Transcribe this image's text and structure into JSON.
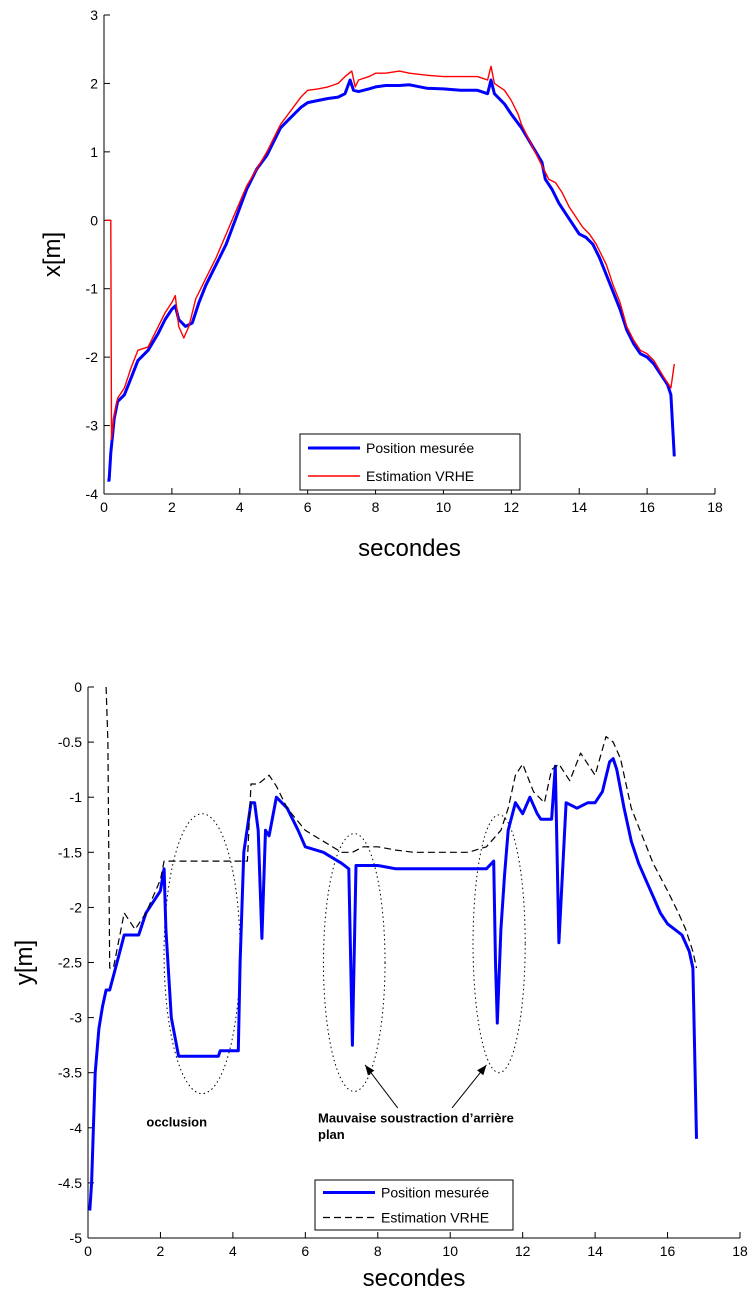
{
  "chart_data": [
    {
      "type": "line",
      "xlabel": "secondes",
      "ylabel": "x[m]",
      "xlim": [
        0,
        18
      ],
      "ylim": [
        -4,
        3
      ],
      "xticks": [
        "0",
        "2",
        "4",
        "6",
        "8",
        "10",
        "12",
        "14",
        "16",
        "18"
      ],
      "yticks": [
        "-4",
        "-3",
        "-2",
        "-1",
        "0",
        "1",
        "2",
        "3"
      ],
      "legend_position": "bottom-center",
      "series": [
        {
          "name": "Position mesurée",
          "color": "#0000ff",
          "style": "solid-thick",
          "x": [
            0.1,
            0.15,
            0.2,
            0.3,
            0.4,
            0.6,
            0.8,
            1.0,
            1.3,
            1.6,
            1.8,
            2.0,
            2.1,
            2.2,
            2.4,
            2.6,
            2.8,
            3.0,
            3.3,
            3.6,
            3.9,
            4.2,
            4.5,
            4.8,
            5.0,
            5.2,
            5.5,
            5.8,
            6.0,
            6.3,
            6.6,
            6.9,
            7.1,
            7.25,
            7.35,
            7.5,
            7.8,
            8.0,
            8.3,
            8.7,
            9.0,
            9.5,
            10.0,
            10.5,
            11.0,
            11.3,
            11.4,
            11.5,
            11.8,
            12.0,
            12.3,
            12.6,
            12.9,
            13.0,
            13.2,
            13.4,
            13.6,
            13.8,
            14.0,
            14.2,
            14.4,
            14.6,
            14.8,
            15.0,
            15.2,
            15.4,
            15.6,
            15.8,
            16.0,
            16.2,
            16.4,
            16.6,
            16.7,
            16.8
          ],
          "y": [
            -3.8,
            -3.8,
            -3.4,
            -2.9,
            -2.65,
            -2.55,
            -2.3,
            -2.05,
            -1.9,
            -1.65,
            -1.45,
            -1.3,
            -1.25,
            -1.45,
            -1.55,
            -1.5,
            -1.2,
            -0.95,
            -0.65,
            -0.35,
            0.05,
            0.45,
            0.75,
            0.95,
            1.15,
            1.35,
            1.5,
            1.65,
            1.72,
            1.75,
            1.78,
            1.8,
            1.85,
            2.05,
            1.9,
            1.88,
            1.92,
            1.95,
            1.97,
            1.97,
            1.98,
            1.93,
            1.92,
            1.9,
            1.9,
            1.85,
            2.05,
            1.85,
            1.7,
            1.55,
            1.35,
            1.1,
            0.85,
            0.6,
            0.45,
            0.25,
            0.1,
            -0.05,
            -0.2,
            -0.25,
            -0.35,
            -0.55,
            -0.8,
            -1.05,
            -1.3,
            -1.6,
            -1.8,
            -1.95,
            -2.0,
            -2.1,
            -2.25,
            -2.4,
            -2.55,
            -3.45
          ]
        },
        {
          "name": "Estimation VRHE",
          "color": "#ff0000",
          "style": "solid-thin",
          "x": [
            0.05,
            0.2,
            0.22,
            0.3,
            0.4,
            0.6,
            0.8,
            1.0,
            1.3,
            1.6,
            1.8,
            2.0,
            2.1,
            2.2,
            2.35,
            2.5,
            2.7,
            3.0,
            3.3,
            3.6,
            3.9,
            4.2,
            4.5,
            4.8,
            5.0,
            5.2,
            5.5,
            5.8,
            6.0,
            6.3,
            6.6,
            6.9,
            7.1,
            7.3,
            7.4,
            7.5,
            7.8,
            8.0,
            8.3,
            8.7,
            9.0,
            9.5,
            10.0,
            10.5,
            11.0,
            11.3,
            11.4,
            11.5,
            11.8,
            12.0,
            12.2,
            12.3,
            12.5,
            12.7,
            12.9,
            13.1,
            13.3,
            13.5,
            13.7,
            13.9,
            14.1,
            14.3,
            14.5,
            14.8,
            15.0,
            15.2,
            15.4,
            15.6,
            15.8,
            16.0,
            16.2,
            16.5,
            16.7,
            16.8
          ],
          "y": [
            0.0,
            0.0,
            -3.2,
            -2.85,
            -2.6,
            -2.45,
            -2.15,
            -1.9,
            -1.85,
            -1.55,
            -1.35,
            -1.2,
            -1.1,
            -1.55,
            -1.72,
            -1.55,
            -1.15,
            -0.85,
            -0.55,
            -0.2,
            0.15,
            0.5,
            0.75,
            1.0,
            1.2,
            1.4,
            1.6,
            1.8,
            1.9,
            1.92,
            1.95,
            2.0,
            2.1,
            2.18,
            1.95,
            2.05,
            2.1,
            2.15,
            2.15,
            2.18,
            2.15,
            2.12,
            2.1,
            2.1,
            2.1,
            2.05,
            2.25,
            2.0,
            1.9,
            1.75,
            1.55,
            1.4,
            1.2,
            1.0,
            0.8,
            0.6,
            0.55,
            0.4,
            0.2,
            0.05,
            -0.1,
            -0.2,
            -0.35,
            -0.65,
            -0.95,
            -1.2,
            -1.55,
            -1.75,
            -1.9,
            -1.95,
            -2.05,
            -2.3,
            -2.45,
            -2.1
          ]
        }
      ]
    },
    {
      "type": "line",
      "xlabel": "secondes",
      "ylabel": "y[m]",
      "xlim": [
        0,
        18
      ],
      "ylim": [
        -5,
        0
      ],
      "xticks": [
        "0",
        "2",
        "4",
        "6",
        "8",
        "10",
        "12",
        "14",
        "16",
        "18"
      ],
      "yticks": [
        "-5",
        "-4.5",
        "-4",
        "-3.5",
        "-3",
        "-2.5",
        "-2",
        "-1.5",
        "-1",
        "-0.5",
        "0"
      ],
      "legend_position": "bottom-center",
      "annotations": {
        "occlusion": "occlusion",
        "bad_background_line1": "Mauvaise soustraction d’arrière",
        "bad_background_line2": "plan"
      },
      "series": [
        {
          "name": "Position mesurée",
          "color": "#0000ff",
          "style": "solid-thick",
          "x": [
            0.05,
            0.1,
            0.2,
            0.3,
            0.4,
            0.5,
            0.6,
            0.8,
            1.0,
            1.4,
            1.6,
            1.8,
            2.0,
            2.1,
            2.15,
            2.3,
            2.5,
            2.8,
            3.2,
            3.6,
            3.65,
            4.0,
            4.15,
            4.2,
            4.3,
            4.5,
            4.6,
            4.7,
            4.8,
            4.9,
            5.0,
            5.2,
            5.5,
            5.8,
            6.0,
            6.5,
            7.0,
            7.2,
            7.3,
            7.4,
            7.6,
            8.0,
            8.5,
            9.0,
            9.5,
            10.0,
            11.0,
            11.2,
            11.25,
            11.3,
            11.4,
            11.5,
            11.6,
            11.8,
            12.0,
            12.2,
            12.4,
            12.5,
            12.7,
            12.8,
            12.9,
            13.0,
            13.2,
            13.5,
            13.8,
            14.0,
            14.2,
            14.4,
            14.5,
            14.6,
            14.8,
            15.0,
            15.2,
            15.4,
            15.6,
            15.8,
            16.0,
            16.2,
            16.4,
            16.6,
            16.7,
            16.8
          ],
          "y": [
            -4.75,
            -4.5,
            -3.5,
            -3.1,
            -2.9,
            -2.75,
            -2.75,
            -2.5,
            -2.25,
            -2.25,
            -2.05,
            -1.95,
            -1.85,
            -1.65,
            -2.2,
            -3.0,
            -3.35,
            -3.35,
            -3.35,
            -3.35,
            -3.3,
            -3.3,
            -3.3,
            -2.5,
            -1.5,
            -1.05,
            -1.05,
            -1.3,
            -2.28,
            -1.3,
            -1.35,
            -1.0,
            -1.1,
            -1.3,
            -1.45,
            -1.5,
            -1.6,
            -1.65,
            -3.25,
            -1.62,
            -1.62,
            -1.62,
            -1.65,
            -1.65,
            -1.65,
            -1.65,
            -1.65,
            -1.58,
            -2.5,
            -3.05,
            -2.2,
            -1.7,
            -1.3,
            -1.05,
            -1.15,
            -1.0,
            -1.15,
            -1.2,
            -1.2,
            -1.2,
            -0.72,
            -2.32,
            -1.05,
            -1.1,
            -1.05,
            -1.05,
            -0.95,
            -0.68,
            -0.65,
            -0.75,
            -1.1,
            -1.4,
            -1.6,
            -1.75,
            -1.9,
            -2.05,
            -2.15,
            -2.2,
            -2.25,
            -2.4,
            -2.55,
            -4.1
          ]
        },
        {
          "name": "Estimation VRHE",
          "color": "#000000",
          "style": "dashed",
          "x": [
            0.5,
            0.55,
            0.6,
            0.7,
            0.85,
            1.0,
            1.3,
            1.6,
            1.8,
            2.0,
            2.1,
            2.5,
            3.0,
            3.5,
            4.0,
            4.4,
            4.5,
            4.7,
            5.0,
            5.2,
            5.5,
            6.0,
            6.5,
            7.0,
            7.3,
            7.6,
            8.0,
            8.5,
            9.0,
            9.5,
            10.0,
            10.5,
            11.0,
            11.4,
            11.6,
            11.8,
            12.0,
            12.3,
            12.6,
            12.8,
            13.0,
            13.3,
            13.6,
            14.0,
            14.3,
            14.5,
            14.7,
            15.0,
            15.3,
            15.6,
            16.0,
            16.3,
            16.5,
            16.7,
            16.8
          ],
          "y": [
            0.0,
            -0.5,
            -2.55,
            -2.55,
            -2.3,
            -2.05,
            -2.2,
            -2.05,
            -1.9,
            -1.75,
            -1.58,
            -1.58,
            -1.58,
            -1.58,
            -1.58,
            -1.58,
            -0.88,
            -0.88,
            -0.8,
            -0.9,
            -1.1,
            -1.3,
            -1.4,
            -1.5,
            -1.5,
            -1.45,
            -1.45,
            -1.48,
            -1.5,
            -1.5,
            -1.5,
            -1.5,
            -1.45,
            -1.3,
            -1.1,
            -0.8,
            -0.7,
            -0.95,
            -1.05,
            -0.75,
            -0.7,
            -0.85,
            -0.6,
            -0.8,
            -0.45,
            -0.5,
            -0.65,
            -1.1,
            -1.35,
            -1.6,
            -1.85,
            -2.05,
            -2.2,
            -2.4,
            -2.55
          ]
        }
      ]
    }
  ]
}
